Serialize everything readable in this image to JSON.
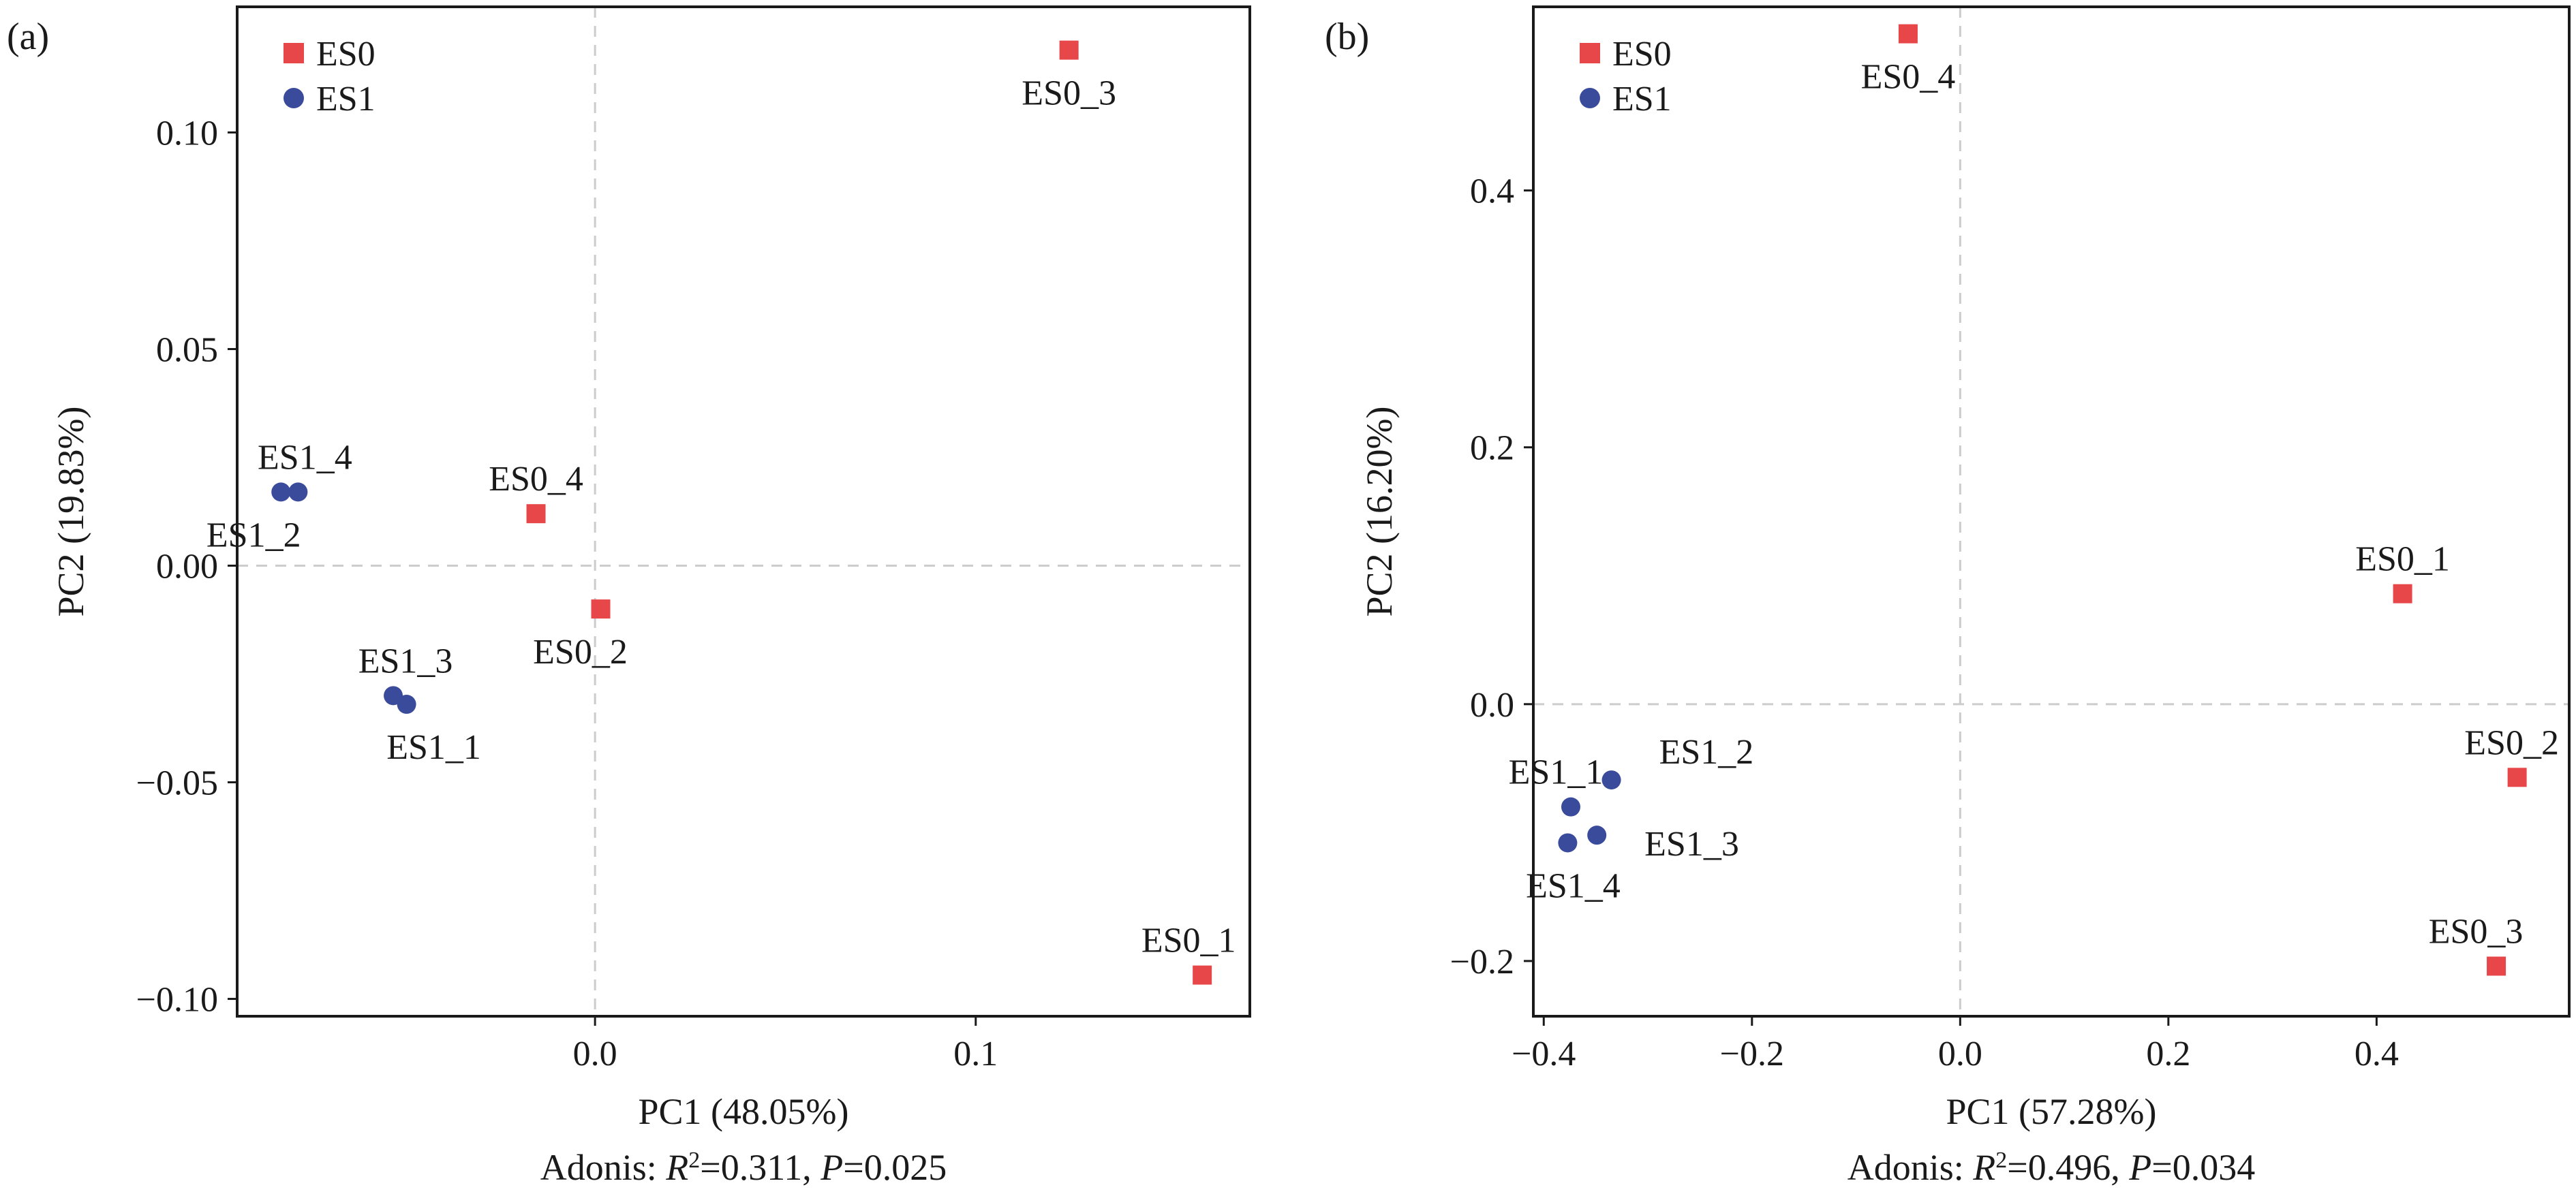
{
  "colors": {
    "ES0": "#e8474a",
    "ES1": "#3a4b9c",
    "zero_line": "#cccccc",
    "frame": "#1a1a1a"
  },
  "chart_data": [
    {
      "type": "scatter",
      "panel_label": "(a)",
      "xlabel": "PC1 (48.05%)",
      "ylabel": "PC2 (19.83%)",
      "caption": {
        "prefix": "Adonis: ",
        "r_symbol": "R",
        "r_sup": "2",
        "r_value": "=0.311, ",
        "p_symbol": "P",
        "p_value": "=0.025"
      },
      "xlim": [
        -0.094,
        0.172
      ],
      "ylim": [
        -0.104,
        0.129
      ],
      "xticks": [
        0.0,
        0.1
      ],
      "xtick_labels": [
        "0.0",
        "0.1"
      ],
      "yticks": [
        0.1,
        0.05,
        0.0,
        -0.05,
        -0.1
      ],
      "ytick_labels": [
        "0.10",
        "0.05",
        "0.00",
        "−0.05",
        "−0.10"
      ],
      "zero_lines": true,
      "legend": {
        "position": "top-left",
        "entries": [
          {
            "name": "ES0",
            "marker": "square"
          },
          {
            "name": "ES1",
            "marker": "circle"
          }
        ]
      },
      "series": [
        {
          "name": "ES0",
          "marker": "square",
          "points": [
            {
              "label": "ES0_1",
              "x": 0.1595,
              "y": -0.0945,
              "label_pos": "above"
            },
            {
              "label": "ES0_2",
              "x": 0.0015,
              "y": -0.01,
              "label_pos": "below"
            },
            {
              "label": "ES0_3",
              "x": 0.1245,
              "y": 0.119,
              "label_pos": "below"
            },
            {
              "label": "ES0_4",
              "x": -0.0155,
              "y": 0.012,
              "label_pos": "above"
            }
          ]
        },
        {
          "name": "ES1",
          "marker": "circle",
          "points": [
            {
              "label": "ES1_1",
              "x": -0.0495,
              "y": -0.032,
              "label_pos": "below"
            },
            {
              "label": "ES1_2",
              "x": -0.0825,
              "y": 0.017,
              "label_pos": "below"
            },
            {
              "label": "ES1_3",
              "x": -0.053,
              "y": -0.03,
              "label_pos": "above"
            },
            {
              "label": "ES1_4",
              "x": -0.078,
              "y": 0.017,
              "label_pos": "above"
            }
          ]
        }
      ]
    },
    {
      "type": "scatter",
      "panel_label": "(b)",
      "xlabel": "PC1 (57.28%)",
      "ylabel": "PC2 (16.20%)",
      "caption": {
        "prefix": "Adonis: ",
        "r_symbol": "R",
        "r_sup": "2",
        "r_value": "=0.496, ",
        "p_symbol": "P",
        "p_value": "=0.034"
      },
      "xlim": [
        -0.41,
        0.585
      ],
      "ylim": [
        -0.243,
        0.543
      ],
      "xticks": [
        -0.4,
        -0.2,
        0.0,
        0.2,
        0.4
      ],
      "xtick_labels": [
        "−0.4",
        "−0.2",
        "0.0",
        "0.2",
        "0.4"
      ],
      "yticks": [
        0.4,
        0.2,
        0.0,
        -0.2
      ],
      "ytick_labels": [
        "0.4",
        "0.2",
        "0.0",
        "−0.2"
      ],
      "zero_lines": true,
      "legend": {
        "position": "top-left",
        "entries": [
          {
            "name": "ES0",
            "marker": "square"
          },
          {
            "name": "ES1",
            "marker": "circle"
          }
        ]
      },
      "series": [
        {
          "name": "ES0",
          "marker": "square",
          "points": [
            {
              "label": "ES0_1",
              "x": 0.425,
              "y": 0.086,
              "label_pos": "above"
            },
            {
              "label": "ES0_2",
              "x": 0.535,
              "y": -0.057,
              "label_pos": "above"
            },
            {
              "label": "ES0_3",
              "x": 0.515,
              "y": -0.204,
              "label_pos": "above"
            },
            {
              "label": "ES0_4",
              "x": -0.05,
              "y": 0.522,
              "label_pos": "below"
            }
          ]
        },
        {
          "name": "ES1",
          "marker": "circle",
          "points": [
            {
              "label": "ES1_1",
              "x": -0.374,
              "y": -0.08,
              "label_pos": "above"
            },
            {
              "label": "ES1_2",
              "x": -0.335,
              "y": -0.059,
              "label_pos": "upper-right"
            },
            {
              "label": "ES1_3",
              "x": -0.349,
              "y": -0.102,
              "label_pos": "right"
            },
            {
              "label": "ES1_4",
              "x": -0.377,
              "y": -0.108,
              "label_pos": "below"
            }
          ]
        }
      ]
    }
  ]
}
